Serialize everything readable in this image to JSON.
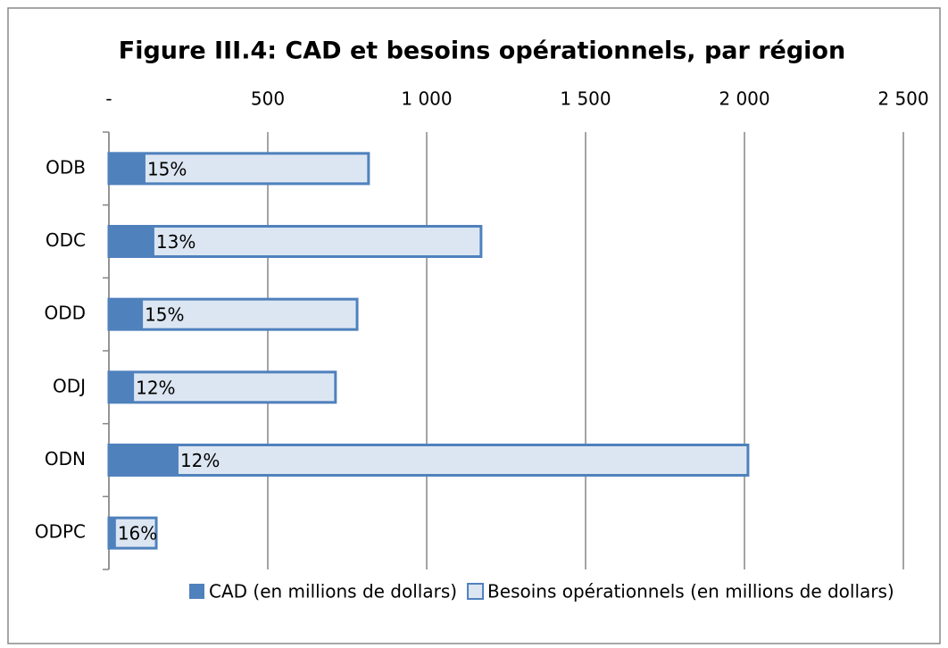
{
  "chart_data": {
    "type": "bar",
    "orientation": "horizontal",
    "bar_layout": "overlap",
    "title": "Figure III.4: CAD et besoins opérationnels, par région",
    "categories": [
      "ODB",
      "ODC",
      "ODD",
      "ODJ",
      "ODN",
      "ODPC"
    ],
    "series": [
      {
        "name": "CAD (en millions de dollars)",
        "color": "#4f81bd",
        "values": [
          115,
          143,
          107,
          79,
          219,
          22
        ]
      },
      {
        "name": "Besoins opérationnels (en millions de dollars)",
        "color": "#dce6f2",
        "edge_color": "#4f81bd",
        "values": [
          817,
          1171,
          781,
          713,
          2011,
          149
        ]
      }
    ],
    "data_labels": [
      "15%",
      "13%",
      "15%",
      "12%",
      "12%",
      "16%"
    ],
    "xlim": [
      0,
      2500
    ],
    "xticks": [
      {
        "value": 0,
        "label": "-"
      },
      500,
      {
        "value": 1000,
        "label": "1 000"
      },
      {
        "value": 1500,
        "label": "1 500"
      },
      {
        "value": 2000,
        "label": "2 000"
      },
      {
        "value": 2500,
        "label": "2 500"
      }
    ],
    "grid": true,
    "legend": "bottom"
  }
}
